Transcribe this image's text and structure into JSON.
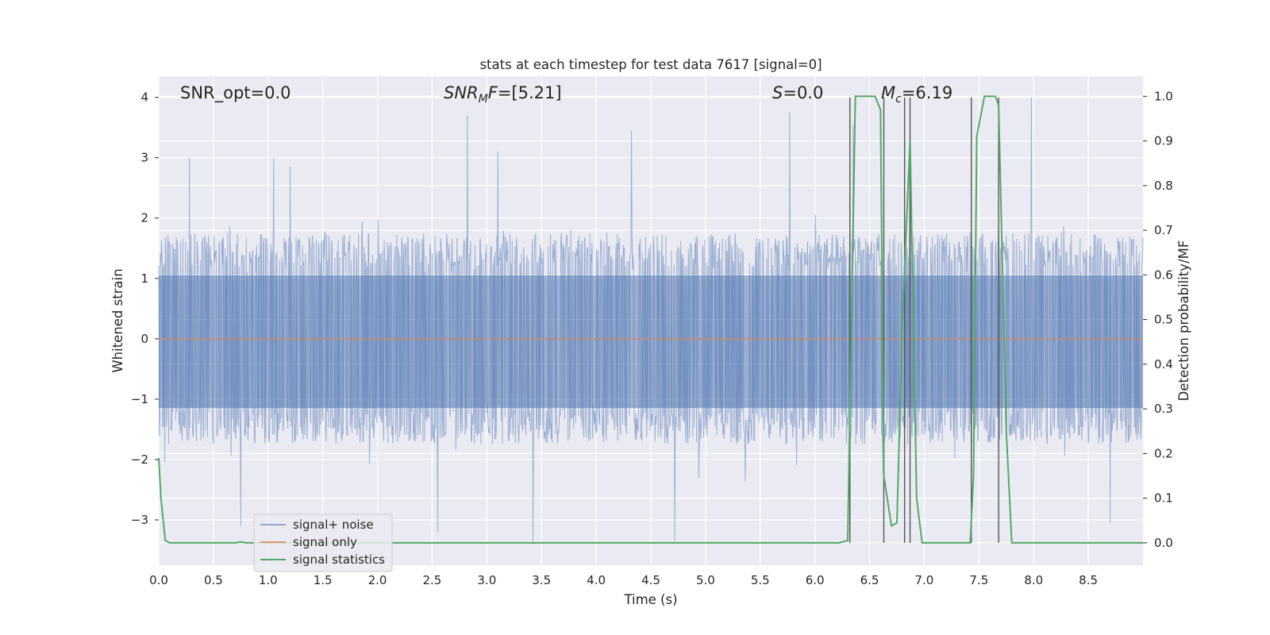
{
  "chart_data": {
    "type": "line",
    "title": "stats at each timestep for test data 7617 [signal=0]",
    "xlabel": "Time (s)",
    "ylabel": "Whitened strain",
    "y2label": "Detection probability/MF",
    "xlim": [
      0,
      9
    ],
    "ylim": [
      -3.75,
      4.35
    ],
    "y2lim": [
      -0.05,
      1.045
    ],
    "xticks": [
      0.0,
      0.5,
      1.0,
      1.5,
      2.0,
      2.5,
      3.0,
      3.5,
      4.0,
      4.5,
      5.0,
      5.5,
      6.0,
      6.5,
      7.0,
      7.5,
      8.0,
      8.5
    ],
    "xtick_labels": [
      "0.0",
      "0.5",
      "1.0",
      "1.5",
      "2.0",
      "2.5",
      "3.0",
      "3.5",
      "4.0",
      "4.5",
      "5.0",
      "5.5",
      "6.0",
      "6.5",
      "7.0",
      "7.5",
      "8.0",
      "8.5"
    ],
    "yticks": [
      -3,
      -2,
      -1,
      0,
      1,
      2,
      3,
      4
    ],
    "ytick_labels": [
      "−3",
      "−2",
      "−1",
      "0",
      "1",
      "2",
      "3",
      "4"
    ],
    "y2ticks": [
      0.0,
      0.1,
      0.2,
      0.3,
      0.4,
      0.5,
      0.6,
      0.7,
      0.8,
      0.9,
      1.0
    ],
    "y2tick_labels": [
      "0.0",
      "0.1",
      "0.2",
      "0.3",
      "0.4",
      "0.5",
      "0.6",
      "0.7",
      "0.8",
      "0.9",
      "1.0"
    ],
    "grid": true,
    "legend_position": "lower-left",
    "annotations": [
      {
        "id": "snr-opt",
        "text": "SNR_opt=0.0",
        "x": 0.2,
        "y": 4.05
      },
      {
        "id": "snr-mf",
        "text": "SNR_MF=[5.21]",
        "x": 2.6,
        "y": 4.05
      },
      {
        "id": "s-value",
        "text": "S=0.0",
        "x": 5.6,
        "y": 4.05
      },
      {
        "id": "mc-value",
        "text": "M_c=6.19",
        "x": 6.65,
        "y": 4.05
      }
    ],
    "series": [
      {
        "name": "signal+ noise",
        "color": "#4c72b0",
        "kind": "noise",
        "n_samples": 1800,
        "envelope": {
          "typical_abs": 1.75,
          "max": 4.0,
          "min": -3.4
        },
        "spikes": [
          {
            "t": 0.28,
            "v": 3.0
          },
          {
            "t": 1.05,
            "v": 3.0
          },
          {
            "t": 1.2,
            "v": 2.85
          },
          {
            "t": 2.82,
            "v": 3.7
          },
          {
            "t": 3.42,
            "v": -3.4
          },
          {
            "t": 4.32,
            "v": 3.45
          },
          {
            "t": 4.72,
            "v": -3.35
          },
          {
            "t": 5.77,
            "v": 3.75
          },
          {
            "t": 6.35,
            "v": 3.55
          },
          {
            "t": 6.87,
            "v": 3.35
          },
          {
            "t": 7.98,
            "v": 4.0
          },
          {
            "t": 0.75,
            "v": -3.1
          },
          {
            "t": 2.55,
            "v": -3.2
          },
          {
            "t": 3.1,
            "v": 3.1
          },
          {
            "t": 8.7,
            "v": -3.05
          }
        ]
      },
      {
        "name": "signal only",
        "color": "#dd8452",
        "kind": "line",
        "x": [
          0.0,
          9.0
        ],
        "y": [
          0.0,
          0.0
        ]
      },
      {
        "name": "signal statistics",
        "color": "#55a868",
        "kind": "line",
        "axis": "right",
        "x": [
          0.0,
          0.02,
          0.06,
          0.1,
          0.15,
          0.7,
          0.75,
          0.8,
          6.22,
          6.3,
          6.32,
          6.37,
          6.55,
          6.6,
          6.63,
          6.7,
          6.75,
          6.8,
          6.87,
          6.93,
          6.98,
          7.42,
          7.45,
          7.48,
          7.55,
          7.65,
          7.68,
          7.75,
          7.8,
          9.0
        ],
        "y": [
          0.19,
          0.1,
          0.005,
          0.0,
          0.0,
          0.0,
          0.002,
          0.0,
          0.0,
          0.005,
          0.3,
          1.0,
          1.0,
          0.97,
          0.15,
          0.038,
          0.045,
          0.5,
          0.9,
          0.1,
          0.0,
          0.0,
          0.15,
          0.91,
          1.0,
          1.0,
          0.98,
          0.25,
          0.0,
          0.0
        ]
      }
    ],
    "vertical_lines": {
      "color": "#555555",
      "x": [
        6.32,
        6.63,
        6.82,
        6.87,
        7.43,
        7.68
      ]
    }
  }
}
